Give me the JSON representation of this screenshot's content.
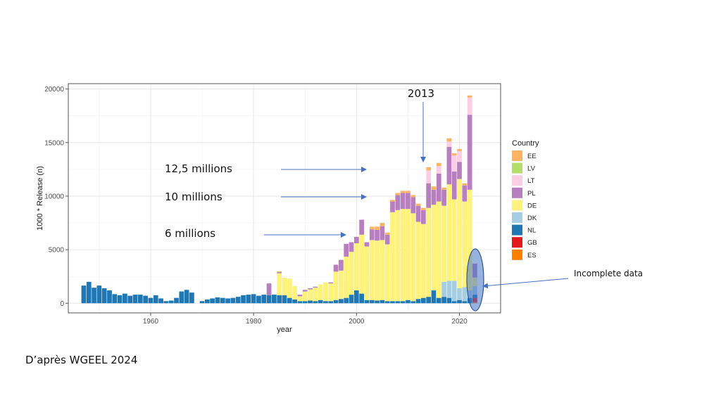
{
  "source_note": "D’après WGEEL 2024",
  "chart_data": {
    "type": "bar",
    "stacked": true,
    "xlabel": "year",
    "ylabel": "1000 * Release (n)",
    "xlim": [
      1944,
      2028
    ],
    "ylim": [
      -900,
      20500
    ],
    "x_ticks": [
      1960,
      1980,
      2000,
      2020
    ],
    "y_ticks": [
      0,
      5000,
      10000,
      15000,
      20000
    ],
    "grid": true,
    "legend": {
      "title": "Country",
      "placement": "right",
      "items": [
        {
          "key": "EE",
          "color": "#FDB462"
        },
        {
          "key": "LV",
          "color": "#B3DE69"
        },
        {
          "key": "LT",
          "color": "#FCCDE5"
        },
        {
          "key": "PL",
          "color": "#B77EC0"
        },
        {
          "key": "DE",
          "color": "#FFF27A"
        },
        {
          "key": "DK",
          "color": "#A6CEE3"
        },
        {
          "key": "NL",
          "color": "#1F78B4"
        },
        {
          "key": "GB",
          "color": "#E31A1C"
        },
        {
          "key": "ES",
          "color": "#FF7F00"
        }
      ]
    },
    "stack_order": [
      "ES",
      "GB",
      "NL",
      "DK",
      "DE",
      "PL",
      "LT",
      "LV",
      "EE"
    ],
    "series_values": [
      {
        "year": 1947,
        "NL": 1650
      },
      {
        "year": 1948,
        "NL": 2000
      },
      {
        "year": 1949,
        "NL": 1450
      },
      {
        "year": 1950,
        "NL": 1650
      },
      {
        "year": 1951,
        "NL": 1400
      },
      {
        "year": 1952,
        "NL": 1200
      },
      {
        "year": 1953,
        "NL": 850
      },
      {
        "year": 1954,
        "NL": 750
      },
      {
        "year": 1955,
        "NL": 900
      },
      {
        "year": 1956,
        "NL": 700
      },
      {
        "year": 1957,
        "NL": 800
      },
      {
        "year": 1958,
        "NL": 800
      },
      {
        "year": 1959,
        "NL": 700
      },
      {
        "year": 1960,
        "NL": 500
      },
      {
        "year": 1961,
        "NL": 750
      },
      {
        "year": 1962,
        "NL": 450
      },
      {
        "year": 1963,
        "NL": 200
      },
      {
        "year": 1964,
        "NL": 250
      },
      {
        "year": 1965,
        "NL": 500
      },
      {
        "year": 1966,
        "NL": 1100
      },
      {
        "year": 1967,
        "NL": 1250
      },
      {
        "year": 1968,
        "NL": 1000
      },
      {
        "year": 1970,
        "NL": 200
      },
      {
        "year": 1971,
        "NL": 350
      },
      {
        "year": 1972,
        "NL": 450
      },
      {
        "year": 1973,
        "NL": 550
      },
      {
        "year": 1974,
        "NL": 500
      },
      {
        "year": 1975,
        "NL": 450
      },
      {
        "year": 1976,
        "NL": 500
      },
      {
        "year": 1977,
        "NL": 600
      },
      {
        "year": 1978,
        "NL": 750
      },
      {
        "year": 1979,
        "NL": 800
      },
      {
        "year": 1980,
        "NL": 850
      },
      {
        "year": 1981,
        "NL": 700
      },
      {
        "year": 1982,
        "NL": 800
      },
      {
        "year": 1983,
        "NL": 750,
        "PL": 1100
      },
      {
        "year": 1984,
        "NL": 800
      },
      {
        "year": 1985,
        "NL": 750,
        "DE": 2050,
        "PL": 100,
        "EE": 80
      },
      {
        "year": 1986,
        "NL": 750,
        "DE": 1650
      },
      {
        "year": 1987,
        "NL": 500,
        "DE": 1800
      },
      {
        "year": 1988,
        "NL": 350,
        "DE": 1250
      },
      {
        "year": 1989,
        "NL": 200,
        "DE": 450,
        "PL": 150
      },
      {
        "year": 1990,
        "NL": 200,
        "DE": 900,
        "PL": 150
      },
      {
        "year": 1991,
        "NL": 250,
        "DE": 1050,
        "PL": 100
      },
      {
        "year": 1992,
        "NL": 200,
        "DE": 1250,
        "PL": 100
      },
      {
        "year": 1993,
        "NL": 300,
        "DE": 1450
      },
      {
        "year": 1994,
        "NL": 200,
        "DE": 1750
      },
      {
        "year": 1995,
        "NL": 200,
        "DE": 1650,
        "PL": 100
      },
      {
        "year": 1996,
        "NL": 300,
        "DE": 2650,
        "PL": 650
      },
      {
        "year": 1997,
        "NL": 400,
        "DE": 2650,
        "PL": 1000
      },
      {
        "year": 1998,
        "NL": 500,
        "DE": 3850,
        "PL": 1200
      },
      {
        "year": 1999,
        "NL": 800,
        "DE": 4000,
        "PL": 900
      },
      {
        "year": 2000,
        "NL": 1200,
        "DE": 4400,
        "PL": 600
      },
      {
        "year": 2001,
        "NL": 900,
        "DE": 5500,
        "PL": 1400
      },
      {
        "year": 2002,
        "NL": 300,
        "DE": 5000,
        "PL": 400
      },
      {
        "year": 2003,
        "NL": 300,
        "DE": 5600,
        "PL": 1000,
        "EE": 250
      },
      {
        "year": 2004,
        "NL": 250,
        "DE": 5600,
        "PL": 1000,
        "EE": 300
      },
      {
        "year": 2005,
        "NL": 300,
        "DE": 5600,
        "PL": 1300,
        "EE": 300
      },
      {
        "year": 2006,
        "NL": 200,
        "DE": 5300,
        "PL": 900,
        "EE": 200
      },
      {
        "year": 2007,
        "NL": 200,
        "DE": 8300,
        "PL": 1000,
        "EE": 150
      },
      {
        "year": 2008,
        "NL": 200,
        "DE": 8500,
        "PL": 1400,
        "EE": 200
      },
      {
        "year": 2009,
        "NL": 200,
        "DE": 8600,
        "PL": 1500,
        "EE": 200
      },
      {
        "year": 2010,
        "NL": 300,
        "DE": 8500,
        "PL": 1500,
        "EE": 200
      },
      {
        "year": 2011,
        "NL": 200,
        "DE": 8200,
        "PL": 1500,
        "EE": 200
      },
      {
        "year": 2012,
        "NL": 400,
        "DE": 7200,
        "PL": 1500,
        "EE": 200
      },
      {
        "year": 2013,
        "NL": 500,
        "DE": 6900,
        "PL": 1300,
        "EE": 200
      },
      {
        "year": 2014,
        "NL": 600,
        "DE": 8300,
        "PL": 2300,
        "LT": 1200,
        "EE": 300
      },
      {
        "year": 2015,
        "NL": 1200,
        "DE": 8000,
        "PL": 1400,
        "EE": 300
      },
      {
        "year": 2016,
        "NL": 500,
        "DE": 9000,
        "PL": 2600,
        "LT": 700,
        "EE": 300
      },
      {
        "year": 2017,
        "NL": 600,
        "DK": 1400,
        "DE": 7100,
        "PL": 1500,
        "EE": 200
      },
      {
        "year": 2018,
        "NL": 500,
        "DK": 1600,
        "DE": 9000,
        "PL": 3500,
        "LT": 500,
        "EE": 300
      },
      {
        "year": 2019,
        "NL": 200,
        "DK": 1900,
        "DE": 7600,
        "PL": 2600,
        "LT": 1500,
        "EE": 200
      },
      {
        "year": 2020,
        "NL": 300,
        "DK": 1100,
        "DE": 10200,
        "PL": 1600,
        "LT": 1000,
        "EE": 200
      },
      {
        "year": 2021,
        "NL": 200,
        "DK": 1300,
        "DE": 8000,
        "PL": 1500,
        "EE": 200
      },
      {
        "year": 2022,
        "NL": 500,
        "DK": 700,
        "DE": 9400,
        "PL": 7000,
        "LT": 1600,
        "EE": 200
      },
      {
        "year": 2023,
        "ES": 100,
        "GB": 400,
        "NL": 300,
        "DK": 800,
        "DE": 800,
        "PL": 1300
      }
    ],
    "annotations": [
      {
        "text": "12,5 millions"
      },
      {
        "text": "10 millions"
      },
      {
        "text": "6 millions"
      },
      {
        "text": "2013"
      },
      {
        "text": "Incomplete data"
      }
    ]
  }
}
